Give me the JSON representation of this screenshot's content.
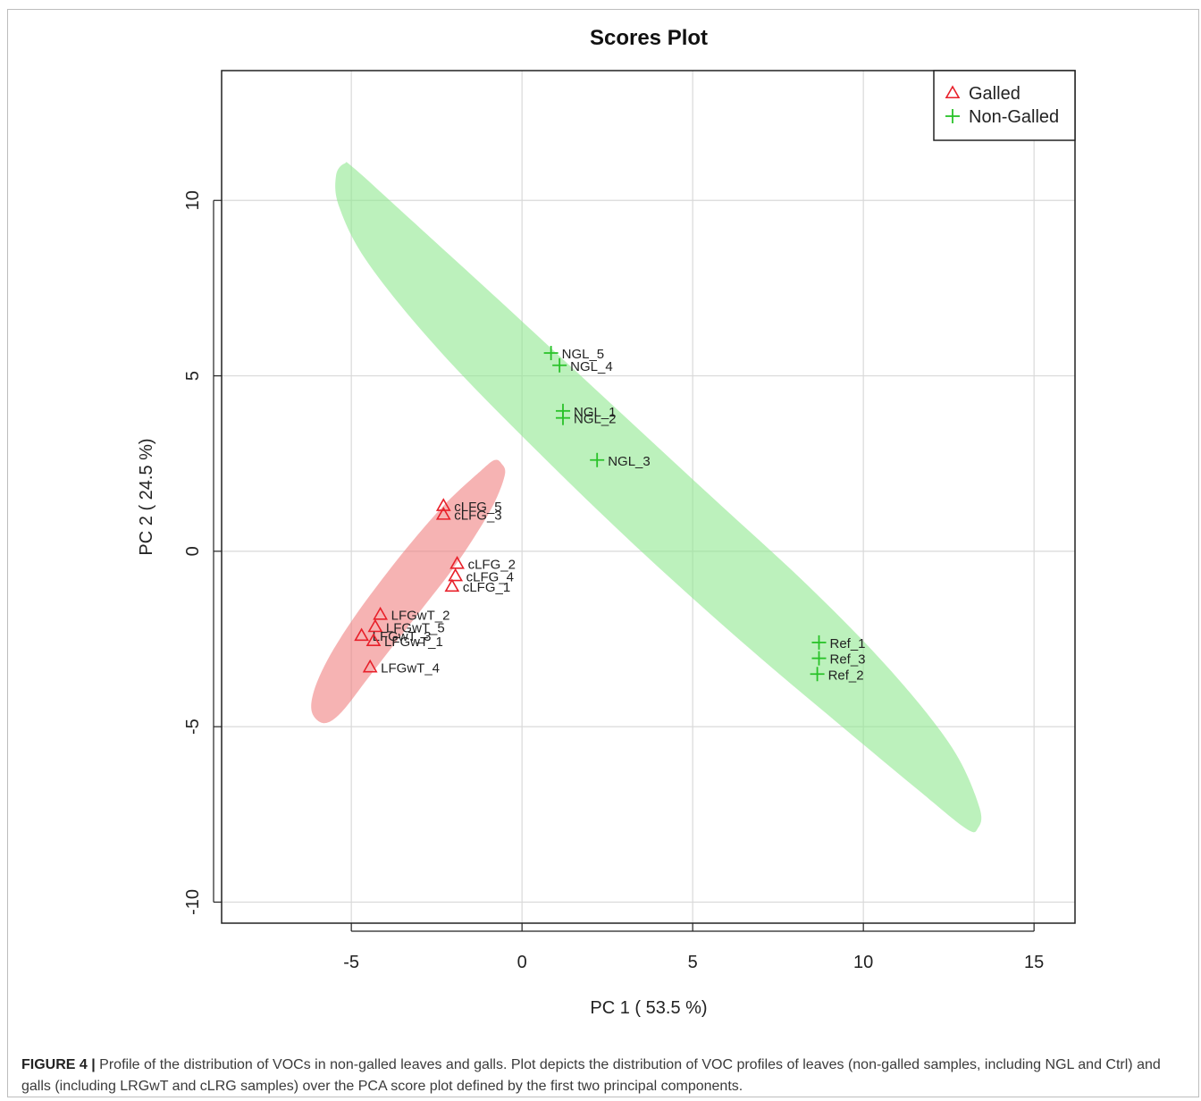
{
  "chart_data": {
    "type": "scatter",
    "title": "Scores Plot",
    "xlabel": "PC 1 ( 53.5 %)",
    "ylabel": "PC 2 ( 24.5 %)",
    "xlim": [
      -8.8,
      16.2
    ],
    "ylim": [
      -10.6,
      13.7
    ],
    "xticks": [
      -5,
      0,
      5,
      10,
      15
    ],
    "yticks": [
      -10,
      -5,
      0,
      5,
      10
    ],
    "grid": true,
    "legend_position": "top-right",
    "series": [
      {
        "name": "Galled",
        "marker": "triangle",
        "color": "#e8202a",
        "ellipse_color": "#f08080",
        "points": [
          {
            "label": "cLFG_5",
            "x": -2.3,
            "y": 1.3
          },
          {
            "label": "cLFG_3",
            "x": -2.3,
            "y": 1.05
          },
          {
            "label": "cLFG_2",
            "x": -1.9,
            "y": -0.35
          },
          {
            "label": "cLFG_4",
            "x": -1.95,
            "y": -0.7
          },
          {
            "label": "cLFG_1",
            "x": -2.05,
            "y": -1.0
          },
          {
            "label": "LFGwT_2",
            "x": -4.15,
            "y": -1.8
          },
          {
            "label": "LFGwT_5",
            "x": -4.3,
            "y": -2.15
          },
          {
            "label": "LFGwT_3",
            "x": -4.7,
            "y": -2.4
          },
          {
            "label": "LFGwT_1",
            "x": -4.35,
            "y": -2.55
          },
          {
            "label": "LFGwT_4",
            "x": -4.45,
            "y": -3.3
          }
        ],
        "ellipse": [
          [
            -0.6,
            2.5
          ],
          [
            -0.5,
            2.2
          ],
          [
            -0.8,
            1.4
          ],
          [
            -1.4,
            0.4
          ],
          [
            -2.1,
            -0.6
          ],
          [
            -2.9,
            -1.6
          ],
          [
            -3.7,
            -2.6
          ],
          [
            -4.5,
            -3.6
          ],
          [
            -5.3,
            -4.6
          ],
          [
            -5.8,
            -4.9
          ],
          [
            -6.15,
            -4.6
          ],
          [
            -6.1,
            -4.0
          ],
          [
            -5.7,
            -3.1
          ],
          [
            -5.0,
            -2.0
          ],
          [
            -4.1,
            -0.8
          ],
          [
            -3.2,
            0.3
          ],
          [
            -2.2,
            1.4
          ],
          [
            -1.2,
            2.3
          ],
          [
            -0.8,
            2.6
          ]
        ]
      },
      {
        "name": "Non-Galled",
        "marker": "plus",
        "color": "#28c228",
        "ellipse_color": "#90e890",
        "points": [
          {
            "label": "NGL_5",
            "x": 0.85,
            "y": 5.65
          },
          {
            "label": "NGL_4",
            "x": 1.1,
            "y": 5.3
          },
          {
            "label": "NGL_1",
            "x": 1.2,
            "y": 4.0
          },
          {
            "label": "NGL_2",
            "x": 1.2,
            "y": 3.8
          },
          {
            "label": "NGL_3",
            "x": 2.2,
            "y": 2.6
          },
          {
            "label": "Ref_1",
            "x": 8.7,
            "y": -2.6
          },
          {
            "label": "Ref_3",
            "x": 8.7,
            "y": -3.05
          },
          {
            "label": "Ref_2",
            "x": 8.65,
            "y": -3.5
          }
        ],
        "ellipse": [
          [
            -5.2,
            11.05
          ],
          [
            -4.9,
            10.9
          ],
          [
            -3.2,
            9.4
          ],
          [
            -0.5,
            7.0
          ],
          [
            2.5,
            4.3
          ],
          [
            5.5,
            1.6
          ],
          [
            8.4,
            -1.0
          ],
          [
            10.8,
            -3.4
          ],
          [
            12.6,
            -5.6
          ],
          [
            13.4,
            -7.3
          ],
          [
            13.35,
            -7.9
          ],
          [
            13.0,
            -7.9
          ],
          [
            11.6,
            -6.8
          ],
          [
            9.5,
            -5.1
          ],
          [
            6.7,
            -2.8
          ],
          [
            3.6,
            -0.1
          ],
          [
            0.5,
            2.8
          ],
          [
            -2.4,
            5.7
          ],
          [
            -4.5,
            8.2
          ],
          [
            -5.35,
            9.8
          ],
          [
            -5.45,
            10.7
          ]
        ]
      }
    ]
  },
  "caption": {
    "label": "FIGURE 4 |",
    "text": " Profile of the distribution of VOCs in non-galled leaves and galls. Plot depicts the distribution of VOC profiles of leaves (non-galled samples, including NGL and Ctrl) and galls (including LRGwT and cLRG samples) over the PCA score plot defined by the first two principal components."
  }
}
